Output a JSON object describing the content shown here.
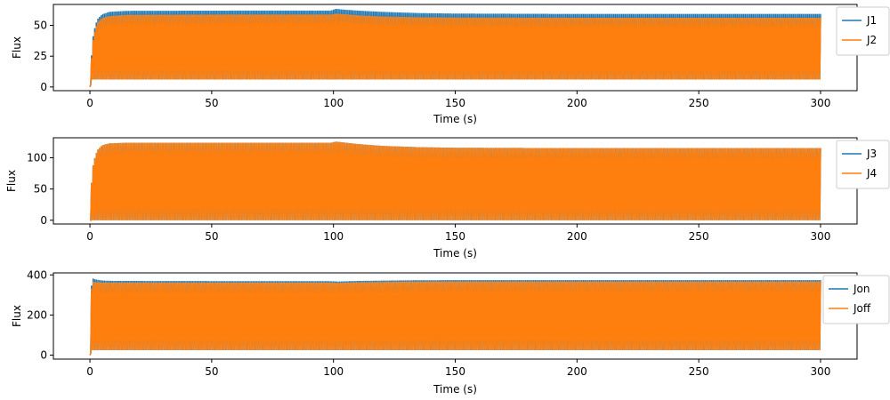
{
  "chart_data": [
    {
      "type": "area",
      "xlabel": "Time (s)",
      "ylabel": "Flux",
      "xlim": [
        -15,
        315
      ],
      "ylim": [
        -3,
        67
      ],
      "xticks": [
        0,
        50,
        100,
        150,
        200,
        250,
        300
      ],
      "yticks": [
        0,
        25,
        50
      ],
      "legend_position": "top-right-outside",
      "series": [
        {
          "name": "J1",
          "color": "#1f77b4",
          "style": "oscillating band",
          "upper": {
            "x": [
              0,
              0.5,
              1,
              2,
              3,
              5,
              8,
              15,
              60,
              99,
              101,
              103,
              110,
              120,
              135,
              150,
              200,
              250,
              300
            ],
            "y": [
              0,
              20,
              38,
              48,
              55,
              59,
              61,
              61.8,
              62,
              62,
              63.5,
              63,
              62,
              61,
              60,
              59.6,
              59.3,
              59.3,
              59.3
            ]
          },
          "lower": {
            "x": [
              0,
              1,
              300
            ],
            "y": [
              0,
              6,
              6
            ]
          }
        },
        {
          "name": "J2",
          "color": "#ff7f0e",
          "style": "oscillating band",
          "upper": {
            "x": [
              0,
              0.5,
              1,
              2,
              3,
              5,
              8,
              15,
              60,
              99,
              101,
              103,
              110,
              120,
              135,
              150,
              200,
              250,
              300
            ],
            "y": [
              0,
              18,
              35,
              45,
              52,
              56,
              57.5,
              58.5,
              58.8,
              58.8,
              59.5,
              59.3,
              58.2,
              57.2,
              56.6,
              56.4,
              56.2,
              56.2,
              56.2
            ]
          },
          "lower": {
            "x": [
              0,
              1,
              300
            ],
            "y": [
              0,
              6,
              6
            ]
          }
        }
      ]
    },
    {
      "type": "area",
      "xlabel": "Time (s)",
      "ylabel": "Flux",
      "xlim": [
        -15,
        315
      ],
      "ylim": [
        -6,
        132
      ],
      "xticks": [
        0,
        50,
        100,
        150,
        200,
        250,
        300
      ],
      "yticks": [
        0,
        50,
        100
      ],
      "legend_position": "top-right-outside",
      "series": [
        {
          "name": "J3",
          "color": "#1f77b4",
          "style": "oscillating band",
          "upper": {
            "x": [
              0,
              0.5,
              1,
              2,
              3,
              5,
              8,
              15,
              60,
              99,
              101,
              103,
              110,
              120,
              135,
              150,
              200,
              250,
              300
            ],
            "y": [
              0,
              50,
              82,
              100,
              112,
              120,
              123,
              124,
              124,
              124,
              126,
              125,
              122,
              119,
              117,
              116,
              115.5,
              115.5,
              115.5
            ]
          },
          "lower": {
            "x": [
              0,
              300
            ],
            "y": [
              0,
              0
            ]
          }
        },
        {
          "name": "J4",
          "color": "#ff7f0e",
          "style": "oscillating band",
          "upper": {
            "x": [
              0,
              0.5,
              1,
              2,
              3,
              5,
              8,
              15,
              60,
              99,
              101,
              103,
              110,
              120,
              135,
              150,
              200,
              250,
              300
            ],
            "y": [
              0,
              50,
              82,
              100,
              112,
              120,
              123,
              124,
              124,
              124,
              126,
              125,
              122,
              119,
              117,
              116,
              115.5,
              115.5,
              115.5
            ]
          },
          "lower": {
            "x": [
              0,
              300
            ],
            "y": [
              0,
              0
            ]
          }
        }
      ]
    },
    {
      "type": "area",
      "xlabel": "Time (s)",
      "ylabel": "Flux",
      "xlim": [
        -15,
        315
      ],
      "ylim": [
        -20,
        410
      ],
      "xticks": [
        0,
        50,
        100,
        150,
        200,
        250,
        300
      ],
      "yticks": [
        0,
        200,
        400
      ],
      "legend_position": "top-right-outside",
      "series": [
        {
          "name": "Jon",
          "color": "#1f77b4",
          "style": "oscillating band",
          "upper": {
            "x": [
              0,
              0.3,
              0.8,
              2,
              5,
              10,
              60,
              98,
              102,
              110,
              130,
              150,
              200,
              300
            ],
            "y": [
              0,
              250,
              385,
              378,
              372,
              370,
              369,
              369,
              367,
              370,
              373,
              374,
              374,
              374
            ]
          },
          "lower": {
            "x": [
              0,
              1,
              300
            ],
            "y": [
              0,
              25,
              25
            ]
          }
        },
        {
          "name": "Joff",
          "color": "#ff7f0e",
          "style": "oscillating band",
          "upper": {
            "x": [
              0,
              0.3,
              0.8,
              2,
              5,
              10,
              60,
              98,
              102,
              110,
              130,
              150,
              200,
              300
            ],
            "y": [
              0,
              240,
              368,
              364,
              362,
              362,
              362,
              362,
              360,
              363,
              366,
              367,
              367,
              367
            ]
          },
          "lower": {
            "x": [
              0,
              1,
              300
            ],
            "y": [
              0,
              25,
              25
            ]
          }
        }
      ]
    }
  ]
}
